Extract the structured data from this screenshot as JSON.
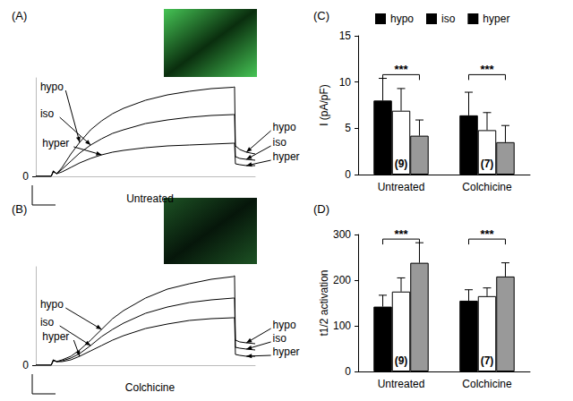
{
  "chart_data": [
    {
      "type": "line",
      "title": "(A)",
      "caption": "Untreated",
      "x": [
        0,
        7,
        8,
        9.5,
        12,
        16,
        20,
        25,
        30,
        35,
        40,
        50,
        60,
        70,
        80,
        90,
        90.6,
        91,
        93,
        96,
        100
      ],
      "series": [
        {
          "name": "hypo",
          "color": "#000000",
          "values": [
            0,
            0,
            6,
            3,
            10,
            25,
            38,
            52,
            62,
            70,
            76,
            85,
            91,
            95,
            98,
            99.5,
            100,
            34,
            30,
            27,
            25
          ]
        },
        {
          "name": "iso",
          "color": "#000000",
          "values": [
            0,
            0,
            6,
            3,
            8,
            17,
            26,
            35,
            42,
            48,
            52,
            59,
            63,
            66,
            68,
            69,
            69,
            22,
            20,
            19,
            18
          ]
        },
        {
          "name": "hyper",
          "color": "#000000",
          "values": [
            0,
            0,
            5,
            3,
            5,
            10,
            15,
            20,
            24,
            27,
            29,
            32,
            34,
            35,
            36,
            37,
            37,
            14,
            13,
            12,
            12
          ]
        }
      ],
      "xlim": [
        0,
        100
      ],
      "ylim": [
        0,
        110
      ],
      "yticks": [
        0
      ],
      "tick_labels": "y",
      "annotations": [
        {
          "text": "hypo",
          "x": 2,
          "y": 100,
          "target": [
            20,
            38
          ]
        },
        {
          "text": "iso",
          "x": 2,
          "y": 70,
          "target": [
            25,
            35
          ]
        },
        {
          "text": "hyper",
          "x": 3,
          "y": 37,
          "target": [
            30,
            24
          ]
        },
        {
          "text": "hypo",
          "x": 108,
          "y": 55,
          "target": [
            96,
            27
          ]
        },
        {
          "text": "iso",
          "x": 108,
          "y": 38,
          "target": [
            96,
            19
          ]
        },
        {
          "text": "hyper",
          "x": 108,
          "y": 22,
          "target": [
            96,
            12
          ]
        }
      ]
    },
    {
      "type": "line",
      "title": "(B)",
      "caption": "Colchicine",
      "x": [
        0,
        7,
        8,
        9.5,
        12,
        16,
        20,
        25,
        30,
        35,
        40,
        50,
        60,
        70,
        80,
        90,
        90.6,
        91,
        93,
        96,
        100
      ],
      "series": [
        {
          "name": "hypo",
          "color": "#000000",
          "values": [
            0,
            0,
            6,
            4,
            6,
            10,
            17,
            28,
            40,
            52,
            61,
            75,
            85,
            91,
            96,
            99,
            100,
            28,
            26,
            25,
            24
          ]
        },
        {
          "name": "iso",
          "color": "#000000",
          "values": [
            0,
            0,
            6,
            4,
            5,
            8,
            13,
            22,
            32,
            40,
            47,
            58,
            65,
            70,
            73,
            75,
            75,
            20,
            19,
            18,
            17
          ]
        },
        {
          "name": "hyper",
          "color": "#000000",
          "values": [
            0,
            0,
            5,
            4,
            4,
            6,
            10,
            16,
            22,
            28,
            33,
            41,
            46,
            50,
            52,
            53,
            53,
            12,
            11,
            10,
            10
          ]
        }
      ],
      "xlim": [
        0,
        100
      ],
      "ylim": [
        0,
        110
      ],
      "yticks": [
        0
      ],
      "tick_labels": "y",
      "annotations": [
        {
          "text": "hypo",
          "x": 2,
          "y": 68,
          "target": [
            30,
            40
          ]
        },
        {
          "text": "iso",
          "x": 2,
          "y": 48,
          "target": [
            25,
            22
          ]
        },
        {
          "text": "hyper",
          "x": 3,
          "y": 32,
          "target": [
            20,
            10
          ]
        },
        {
          "text": "hypo",
          "x": 108,
          "y": 45,
          "target": [
            96,
            25
          ]
        },
        {
          "text": "iso",
          "x": 108,
          "y": 30,
          "target": [
            96,
            18
          ]
        },
        {
          "text": "hyper",
          "x": 108,
          "y": 15,
          "target": [
            96,
            10
          ]
        }
      ]
    },
    {
      "type": "bar",
      "title": "(C)",
      "y_label": "I (pA/pF)",
      "categories": [
        "Untreated",
        "Colchicine"
      ],
      "series": [
        {
          "name": "hypo",
          "color": "#000000",
          "values": [
            8.0,
            6.4
          ],
          "errors": [
            2.4,
            2.5
          ]
        },
        {
          "name": "iso",
          "color": "#ffffff",
          "values": [
            6.9,
            4.8
          ],
          "errors": [
            2.4,
            1.9
          ]
        },
        {
          "name": "hyper",
          "color": "#999999",
          "values": [
            4.2,
            3.5
          ],
          "errors": [
            1.7,
            1.8
          ]
        }
      ],
      "ylim": [
        0,
        15
      ],
      "yticks": [
        0,
        5,
        10,
        15
      ],
      "legend": "top",
      "n_labels": [
        "(9)",
        "(7)"
      ],
      "significance": [
        {
          "category": "Untreated",
          "from": "hypo",
          "to": "hyper",
          "y": 10.8,
          "label": "***"
        },
        {
          "category": "Colchicine",
          "from": "hypo",
          "to": "hyper",
          "y": 10.8,
          "label": "***"
        }
      ]
    },
    {
      "type": "bar",
      "title": "(D)",
      "y_label": "t1/2 activation",
      "categories": [
        "Untreated",
        "Colchicine"
      ],
      "series": [
        {
          "name": "hypo",
          "color": "#000000",
          "values": [
            142,
            155
          ],
          "errors": [
            25,
            24
          ]
        },
        {
          "name": "iso",
          "color": "#ffffff",
          "values": [
            175,
            165
          ],
          "errors": [
            30,
            18
          ]
        },
        {
          "name": "hyper",
          "color": "#999999",
          "values": [
            238,
            208
          ],
          "errors": [
            44,
            30
          ]
        }
      ],
      "ylim": [
        0,
        300
      ],
      "yticks": [
        0,
        100,
        200,
        300
      ],
      "n_labels": [
        "(9)",
        "(7)"
      ],
      "significance": [
        {
          "category": "Untreated",
          "from": "hypo",
          "to": "hyper",
          "y": 290,
          "label": "***"
        },
        {
          "category": "Colchicine",
          "from": "hypo",
          "to": "hyper",
          "y": 290,
          "label": "***"
        }
      ]
    }
  ]
}
